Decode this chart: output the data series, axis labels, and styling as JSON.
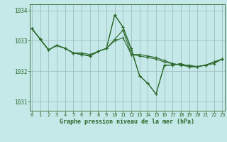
{
  "background_color": "#c5e8e8",
  "plot_bg_color": "#c5e8e8",
  "grid_color": "#9fbfbf",
  "line_color": "#2d6a2d",
  "xlabel": "Graphe pression niveau de la mer (hPa)",
  "xlim": [
    -0.3,
    23.3
  ],
  "ylim": [
    1030.7,
    1034.2
  ],
  "yticks": [
    1031,
    1032,
    1033,
    1034
  ],
  "xticks": [
    0,
    1,
    2,
    3,
    4,
    5,
    6,
    7,
    8,
    9,
    10,
    11,
    12,
    13,
    14,
    15,
    16,
    17,
    18,
    19,
    20,
    21,
    22,
    23
  ],
  "series": [
    [
      1033.4,
      1033.05,
      1032.7,
      1032.85,
      1032.75,
      1032.6,
      1032.6,
      1032.55,
      1032.65,
      1032.75,
      1033.05,
      1033.35,
      1032.55,
      1032.55,
      1032.5,
      1032.45,
      1032.35,
      1032.25,
      1032.2,
      1032.2,
      1032.15,
      1032.2,
      1032.25,
      1032.4
    ],
    [
      1033.4,
      1033.05,
      1032.7,
      1032.85,
      1032.75,
      1032.6,
      1032.55,
      1032.5,
      1032.65,
      1032.75,
      1033.0,
      1033.1,
      1032.55,
      1032.5,
      1032.45,
      1032.4,
      1032.3,
      1032.25,
      1032.2,
      1032.15,
      1032.15,
      1032.2,
      1032.3,
      1032.4
    ],
    [
      1033.4,
      1033.05,
      1032.7,
      1032.85,
      1032.75,
      1032.6,
      1032.55,
      1032.5,
      1032.65,
      1032.75,
      1033.85,
      1033.45,
      1032.75,
      1031.85,
      1031.6,
      1031.25,
      1032.2,
      1032.2,
      1032.25,
      1032.15,
      1032.15,
      1032.2,
      1032.3,
      1032.4
    ],
    [
      1033.4,
      1033.05,
      1032.7,
      1032.85,
      1032.75,
      1032.6,
      1032.55,
      1032.5,
      1032.65,
      1032.75,
      1033.85,
      1033.45,
      1032.7,
      1031.85,
      1031.6,
      1031.25,
      1032.2,
      1032.2,
      1032.25,
      1032.15,
      1032.15,
      1032.2,
      1032.3,
      1032.4
    ]
  ]
}
